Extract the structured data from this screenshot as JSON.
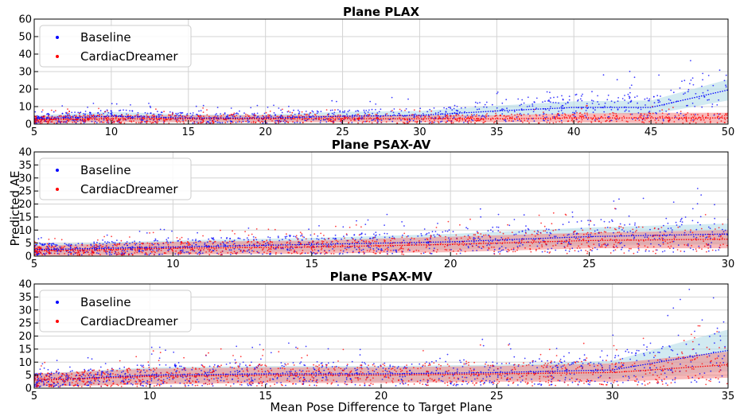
{
  "figure": {
    "xlabel": "Mean Pose Difference to Target Plane",
    "ylabel": "Predicted AE"
  },
  "chart_data": [
    {
      "type": "scatter",
      "title": "Plane PLAX",
      "xlim": [
        5,
        50
      ],
      "ylim": [
        0,
        60
      ],
      "xticks": [
        5,
        10,
        15,
        20,
        25,
        30,
        35,
        40,
        45,
        50
      ],
      "yticks": [
        0,
        10,
        20,
        30,
        40,
        50,
        60
      ],
      "grid": true,
      "legend_position": "top-left",
      "series": [
        {
          "name": "Baseline",
          "color": "#0000ff",
          "band_color": "#add8e6",
          "trend_x": [
            5,
            10,
            15,
            20,
            25,
            30,
            35,
            40,
            45,
            50
          ],
          "trend_y": [
            3,
            4.5,
            3.5,
            3.5,
            4.5,
            5,
            7.5,
            9.5,
            9.5,
            19.5
          ],
          "band_halfwidth": [
            2,
            2.5,
            2,
            2,
            2.5,
            2.5,
            3,
            3.5,
            4,
            6
          ]
        },
        {
          "name": "CardiacDreamer",
          "color": "#ff0000",
          "band_color": "#f08080",
          "trend_x": [
            5,
            10,
            15,
            20,
            25,
            30,
            35,
            40,
            45,
            50
          ],
          "trend_y": [
            2.5,
            3,
            3,
            3,
            3,
            3,
            3,
            3.5,
            3.5,
            3.5
          ],
          "band_halfwidth": [
            2,
            2,
            2,
            2,
            2,
            2,
            2,
            2.5,
            3,
            3
          ]
        }
      ]
    },
    {
      "type": "scatter",
      "title": "Plane PSAX-AV",
      "xlim": [
        5,
        30
      ],
      "ylim": [
        0,
        40
      ],
      "xticks": [
        5,
        10,
        15,
        20,
        25,
        30
      ],
      "yticks": [
        0,
        5,
        10,
        15,
        20,
        25,
        30,
        35,
        40
      ],
      "grid": true,
      "legend_position": "top-left",
      "series": [
        {
          "name": "Baseline",
          "color": "#0000ff",
          "band_color": "#add8e6",
          "trend_x": [
            5,
            10,
            15,
            20,
            25,
            30
          ],
          "trend_y": [
            2.5,
            3.5,
            4.5,
            5.5,
            7.5,
            8.5
          ],
          "band_halfwidth": [
            2,
            2.5,
            2.5,
            3,
            3.5,
            4
          ]
        },
        {
          "name": "CardiacDreamer",
          "color": "#ff0000",
          "band_color": "#f08080",
          "trend_x": [
            5,
            10,
            15,
            20,
            25,
            30
          ],
          "trend_y": [
            2,
            3,
            3.5,
            4.5,
            6,
            6.5
          ],
          "band_halfwidth": [
            2,
            2.5,
            2.5,
            3,
            3,
            3.5
          ]
        }
      ]
    },
    {
      "type": "scatter",
      "title": "Plane PSAX-MV",
      "xlim": [
        5,
        35
      ],
      "ylim": [
        0,
        40
      ],
      "xticks": [
        5,
        10,
        15,
        20,
        25,
        30,
        35
      ],
      "yticks": [
        0,
        5,
        10,
        15,
        20,
        25,
        30,
        35,
        40
      ],
      "grid": true,
      "legend_position": "top-left",
      "series": [
        {
          "name": "Baseline",
          "color": "#0000ff",
          "band_color": "#add8e6",
          "trend_x": [
            5,
            10,
            15,
            20,
            25,
            30,
            35
          ],
          "trend_y": [
            3,
            5,
            5.5,
            5.5,
            6,
            7,
            14.5
          ],
          "band_halfwidth": [
            2.5,
            3,
            3,
            3,
            3,
            3.5,
            8
          ]
        },
        {
          "name": "CardiacDreamer",
          "color": "#ff0000",
          "band_color": "#f08080",
          "trend_x": [
            5,
            10,
            15,
            20,
            25,
            30,
            35
          ],
          "trend_y": [
            3,
            4.5,
            5,
            5,
            5.5,
            6,
            9
          ],
          "band_halfwidth": [
            2.5,
            3,
            3,
            3,
            3,
            3.5,
            5
          ]
        }
      ]
    }
  ]
}
